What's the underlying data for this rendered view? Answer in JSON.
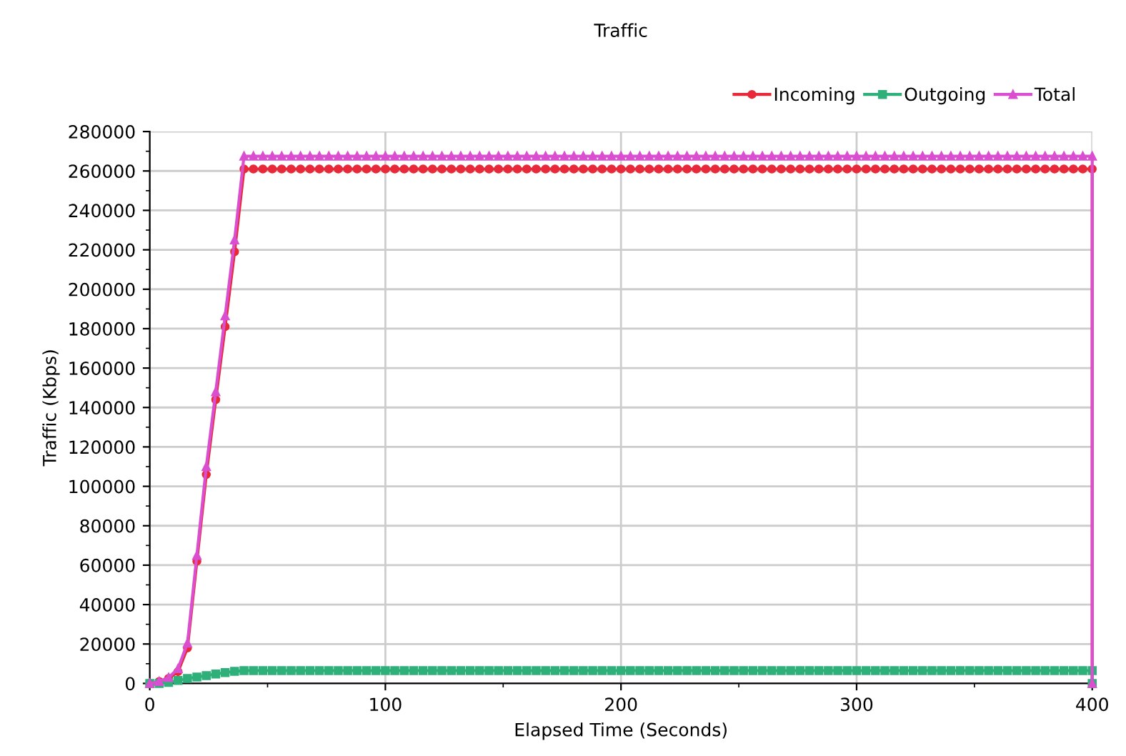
{
  "chart_data": {
    "type": "line",
    "title": "Traffic",
    "xlabel": "Elapsed Time (Seconds)",
    "ylabel": "Traffic (Kbps)",
    "x": [
      0,
      4,
      8,
      12,
      16,
      20,
      24,
      28,
      32,
      36,
      40,
      44,
      48,
      52,
      56,
      60,
      64,
      68,
      72,
      76,
      80,
      84,
      88,
      92,
      96,
      100,
      104,
      108,
      112,
      116,
      120,
      124,
      128,
      132,
      136,
      140,
      144,
      148,
      152,
      156,
      160,
      164,
      168,
      172,
      176,
      180,
      184,
      188,
      192,
      196,
      200,
      204,
      208,
      212,
      216,
      220,
      224,
      228,
      232,
      236,
      240,
      244,
      248,
      252,
      256,
      260,
      264,
      268,
      272,
      276,
      280,
      284,
      288,
      292,
      296,
      300,
      304,
      308,
      312,
      316,
      320,
      324,
      328,
      332,
      336,
      340,
      344,
      348,
      352,
      356,
      360,
      364,
      368,
      372,
      376,
      380,
      384,
      388,
      392,
      396,
      400,
      400
    ],
    "series": [
      {
        "name": "Incoming",
        "color": "#e8293a",
        "marker": "circle",
        "values": [
          0,
          1000,
          2500,
          6000,
          18000,
          62000,
          106000,
          144000,
          181000,
          219000,
          261000,
          261000,
          261000,
          261000,
          261000,
          261000,
          261000,
          261000,
          261000,
          261000,
          261000,
          261000,
          261000,
          261000,
          261000,
          261000,
          261000,
          261000,
          261000,
          261000,
          261000,
          261000,
          261000,
          261000,
          261000,
          261000,
          261000,
          261000,
          261000,
          261000,
          261000,
          261000,
          261000,
          261000,
          261000,
          261000,
          261000,
          261000,
          261000,
          261000,
          261000,
          261000,
          261000,
          261000,
          261000,
          261000,
          261000,
          261000,
          261000,
          261000,
          261000,
          261000,
          261000,
          261000,
          261000,
          261000,
          261000,
          261000,
          261000,
          261000,
          261000,
          261000,
          261000,
          261000,
          261000,
          261000,
          261000,
          261000,
          261000,
          261000,
          261000,
          261000,
          261000,
          261000,
          261000,
          261000,
          261000,
          261000,
          261000,
          261000,
          261000,
          261000,
          261000,
          261000,
          261000,
          261000,
          261000,
          261000,
          261000,
          261000,
          261000,
          0
        ]
      },
      {
        "name": "Outgoing",
        "color": "#2fb07a",
        "marker": "square",
        "values": [
          0,
          0,
          500,
          1500,
          2500,
          3200,
          4000,
          4800,
          5500,
          6100,
          6500,
          6500,
          6500,
          6500,
          6500,
          6500,
          6500,
          6500,
          6500,
          6500,
          6500,
          6500,
          6500,
          6500,
          6500,
          6500,
          6500,
          6500,
          6500,
          6500,
          6500,
          6500,
          6500,
          6500,
          6500,
          6500,
          6500,
          6500,
          6500,
          6500,
          6500,
          6500,
          6500,
          6500,
          6500,
          6500,
          6500,
          6500,
          6500,
          6500,
          6500,
          6500,
          6500,
          6500,
          6500,
          6500,
          6500,
          6500,
          6500,
          6500,
          6500,
          6500,
          6500,
          6500,
          6500,
          6500,
          6500,
          6500,
          6500,
          6500,
          6500,
          6500,
          6500,
          6500,
          6500,
          6500,
          6500,
          6500,
          6500,
          6500,
          6500,
          6500,
          6500,
          6500,
          6500,
          6500,
          6500,
          6500,
          6500,
          6500,
          6500,
          6500,
          6500,
          6500,
          6500,
          6500,
          6500,
          6500,
          6500,
          6500,
          6500,
          0
        ]
      },
      {
        "name": "Total",
        "color": "#d94fd0",
        "marker": "triangle",
        "values": [
          0,
          1000,
          3000,
          7500,
          20500,
          65000,
          110000,
          148000,
          186500,
          225000,
          267500,
          267500,
          267500,
          267500,
          267500,
          267500,
          267500,
          267500,
          267500,
          267500,
          267500,
          267500,
          267500,
          267500,
          267500,
          267500,
          267500,
          267500,
          267500,
          267500,
          267500,
          267500,
          267500,
          267500,
          267500,
          267500,
          267500,
          267500,
          267500,
          267500,
          267500,
          267500,
          267500,
          267500,
          267500,
          267500,
          267500,
          267500,
          267500,
          267500,
          267500,
          267500,
          267500,
          267500,
          267500,
          267500,
          267500,
          267500,
          267500,
          267500,
          267500,
          267500,
          267500,
          267500,
          267500,
          267500,
          267500,
          267500,
          267500,
          267500,
          267500,
          267500,
          267500,
          267500,
          267500,
          267500,
          267500,
          267500,
          267500,
          267500,
          267500,
          267500,
          267500,
          267500,
          267500,
          267500,
          267500,
          267500,
          267500,
          267500,
          267500,
          267500,
          267500,
          267500,
          267500,
          267500,
          267500,
          267500,
          267500,
          267500,
          267500,
          0
        ]
      }
    ],
    "xlim": [
      0,
      400
    ],
    "xticks": [
      0,
      100,
      200,
      300,
      400
    ],
    "ylim": [
      0,
      280000
    ],
    "yticks": [
      0,
      20000,
      40000,
      60000,
      80000,
      100000,
      120000,
      140000,
      160000,
      180000,
      200000,
      220000,
      240000,
      260000,
      280000
    ],
    "grid": true,
    "legend": "top right"
  }
}
